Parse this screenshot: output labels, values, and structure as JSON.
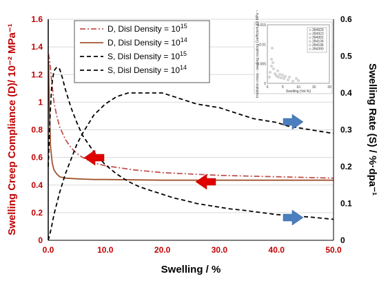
{
  "chart_data": {
    "type": "line",
    "xlabel": "Swelling / %",
    "ylabel_left": "Swelling Creep Compliance (D)/ 10⁻² MPa⁻¹",
    "ylabel_right": "Swelling Rate (S) / %·dpa⁻¹",
    "xlim": [
      0,
      50
    ],
    "ylim_left": [
      0,
      1.6
    ],
    "ylim_right": [
      0,
      0.6
    ],
    "x_ticks": [
      "0.0",
      "10.0",
      "20.0",
      "30.0",
      "40.0",
      "50.0"
    ],
    "x_tick_values": [
      0,
      10,
      20,
      30,
      40,
      50
    ],
    "y_left_ticks": [
      "0",
      "0.2",
      "0.4",
      "0.6",
      "0.8",
      "1",
      "1.2",
      "1.4",
      "1.6"
    ],
    "y_left_tick_values": [
      0,
      0.2,
      0.4,
      0.6,
      0.8,
      1.0,
      1.2,
      1.4,
      1.6
    ],
    "y_right_ticks": [
      "0",
      "0.1",
      "0.2",
      "0.3",
      "0.4",
      "0.5",
      "0.6"
    ],
    "y_right_tick_values": [
      0,
      0.1,
      0.2,
      0.3,
      0.4,
      0.5,
      0.6
    ],
    "legend": [
      {
        "label": "D, Disl Density = 10",
        "sup": "15",
        "color": "#c0504d",
        "dash": "8,3,2,3"
      },
      {
        "label": "D, Disl Density = 10",
        "sup": "14",
        "color": "#a0522d",
        "dash": ""
      },
      {
        "label": "S, Disl Density = 10",
        "sup": "15",
        "color": "#000000",
        "dash": "6,4"
      },
      {
        "label": "S, Disl Density = 10",
        "sup": "14",
        "color": "#000000",
        "dash": "6,4"
      }
    ],
    "series": [
      {
        "name": "D, Disl Density = 10^15",
        "axis": "left",
        "color": "#c0504d",
        "dash": "8,3,2,3",
        "x": [
          0.05,
          0.3,
          0.6,
          1,
          1.5,
          2,
          3,
          4,
          5,
          6,
          8,
          10,
          15,
          20,
          30,
          40,
          50
        ],
        "y": [
          1.35,
          1.28,
          1.15,
          1.0,
          0.9,
          0.82,
          0.73,
          0.67,
          0.63,
          0.6,
          0.56,
          0.54,
          0.51,
          0.49,
          0.47,
          0.46,
          0.45
        ]
      },
      {
        "name": "D, Disl Density = 10^14",
        "axis": "left",
        "color": "#a0522d",
        "dash": "",
        "x": [
          0.05,
          0.2,
          0.4,
          0.7,
          1,
          1.5,
          2,
          3,
          5,
          8,
          10,
          20,
          30,
          40,
          50
        ],
        "y": [
          1.3,
          0.95,
          0.68,
          0.56,
          0.51,
          0.48,
          0.46,
          0.45,
          0.445,
          0.44,
          0.44,
          0.435,
          0.435,
          0.435,
          0.435
        ]
      },
      {
        "name": "S, Disl Density = 10^15",
        "axis": "right",
        "color": "#000000",
        "dash": "6,4",
        "x": [
          0,
          0.5,
          1,
          2,
          3,
          4,
          5,
          6,
          8,
          10,
          12,
          14,
          16,
          18,
          20,
          22,
          24,
          26,
          28,
          30,
          32,
          34,
          36,
          38,
          40,
          42,
          44,
          46,
          48,
          50
        ],
        "y": [
          0,
          0.03,
          0.07,
          0.13,
          0.18,
          0.22,
          0.26,
          0.29,
          0.34,
          0.37,
          0.39,
          0.4,
          0.4,
          0.4,
          0.4,
          0.39,
          0.38,
          0.37,
          0.365,
          0.36,
          0.35,
          0.34,
          0.33,
          0.325,
          0.32,
          0.31,
          0.305,
          0.3,
          0.295,
          0.29
        ]
      },
      {
        "name": "S, Disl Density = 10^14",
        "axis": "right",
        "color": "#000000",
        "dash": "6,4",
        "x": [
          0,
          0.3,
          0.6,
          1,
          1.5,
          2,
          2.5,
          3,
          4,
          5,
          6,
          8,
          10,
          12,
          14,
          16,
          18,
          20,
          22,
          24,
          26,
          28,
          30,
          32,
          34,
          36,
          38,
          40,
          42,
          44,
          46,
          48,
          50
        ],
        "y": [
          0.2,
          0.33,
          0.42,
          0.46,
          0.47,
          0.465,
          0.44,
          0.41,
          0.36,
          0.32,
          0.285,
          0.24,
          0.205,
          0.18,
          0.16,
          0.145,
          0.135,
          0.125,
          0.115,
          0.108,
          0.1,
          0.095,
          0.09,
          0.085,
          0.082,
          0.078,
          0.074,
          0.07,
          0.068,
          0.065,
          0.063,
          0.06,
          0.057
        ]
      }
    ],
    "inset": {
      "title_x": "Swelling (Vol.%)",
      "title_y": "Irradiation creep - swelling coupling Coefficient (D) MPa⁻¹",
      "y_ticks": [
        "0.015",
        "0.01",
        "0.005",
        "0"
      ],
      "x_ticks": [
        "0",
        "5",
        "10",
        "15",
        "20"
      ],
      "legend": [
        "394929",
        "394923",
        "394991",
        "394106",
        "394196",
        "394390"
      ]
    }
  }
}
